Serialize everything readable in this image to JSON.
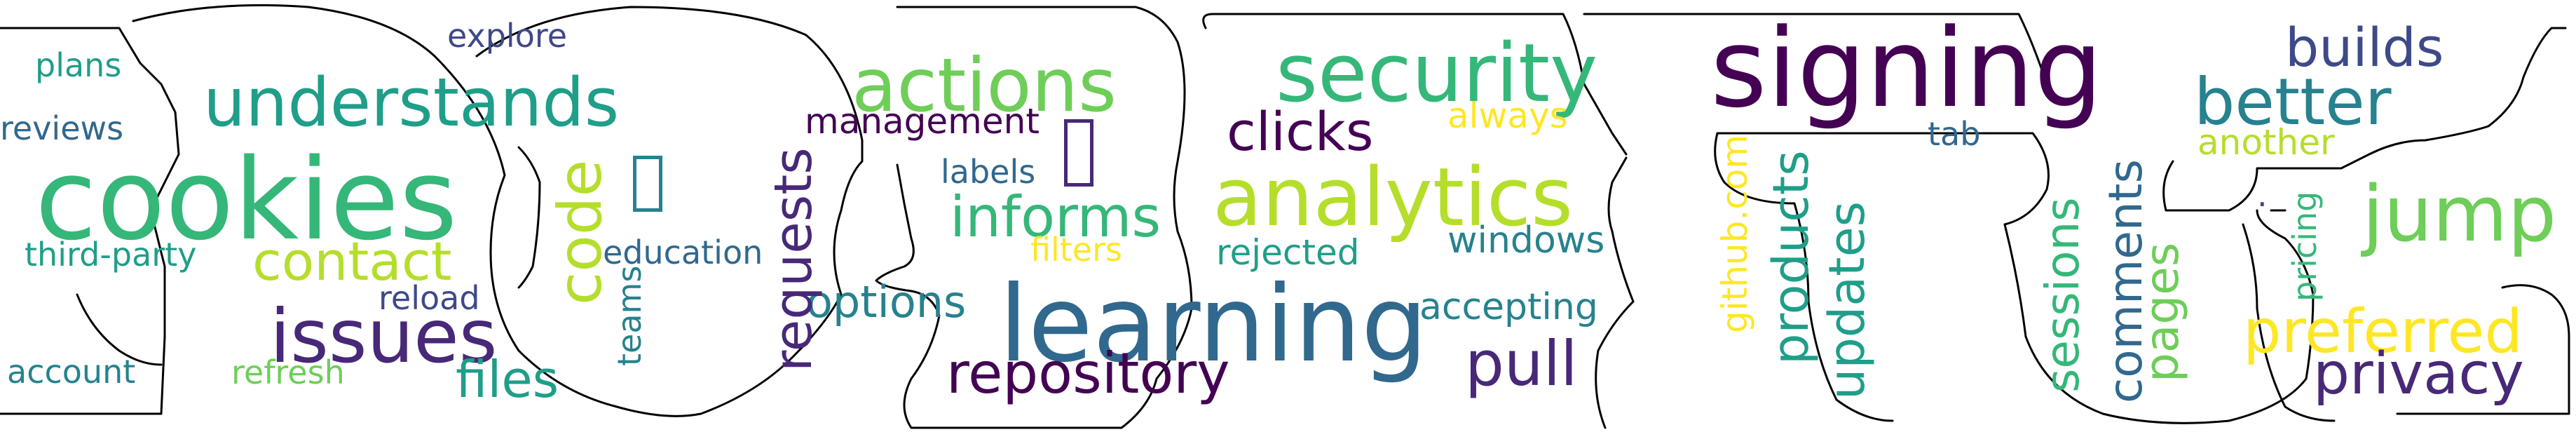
{
  "words": {
    "explore": "explore",
    "plans": "plans",
    "reviews": "reviews",
    "understands": "understands",
    "actions": "actions",
    "security": "security",
    "signing": "signing",
    "builds": "builds",
    "better": "better",
    "management": "management",
    "clicks": "clicks",
    "always": "always",
    "tab": "tab",
    "another": "another",
    "cookies": "cookies",
    "analytics": "analytics",
    "labels": "labels",
    "jump": "jump",
    "informs": "informs",
    "third_party": "third-party",
    "contact": "contact",
    "education": "education",
    "filters": "filters",
    "rejected": "rejected",
    "windows": "windows",
    "reload": "reload",
    "options": "options",
    "learning": "learning",
    "accepting": "accepting",
    "issues": "issues",
    "preferred": "preferred",
    "account": "account",
    "refresh": "refresh",
    "files": "files",
    "repository": "repository",
    "pull": "pull",
    "privacy": "privacy",
    "code": "code",
    "teams": "teams",
    "requests": "requests",
    "github_com": "github.com",
    "products": "products",
    "updates": "updates",
    "sessions": "sessions",
    "comments": "comments",
    "pages": "pages",
    "pricing": "pricing",
    "dot": "."
  },
  "colors": {
    "outline": "#000000",
    "palette": [
      "#440154",
      "#482878",
      "#3e4989",
      "#31688e",
      "#26828e",
      "#1f9e89",
      "#35b779",
      "#6ece58",
      "#b5de2b",
      "#fde725"
    ]
  },
  "glyphs": [
    "tofu-glyph",
    "tofu-glyph"
  ]
}
